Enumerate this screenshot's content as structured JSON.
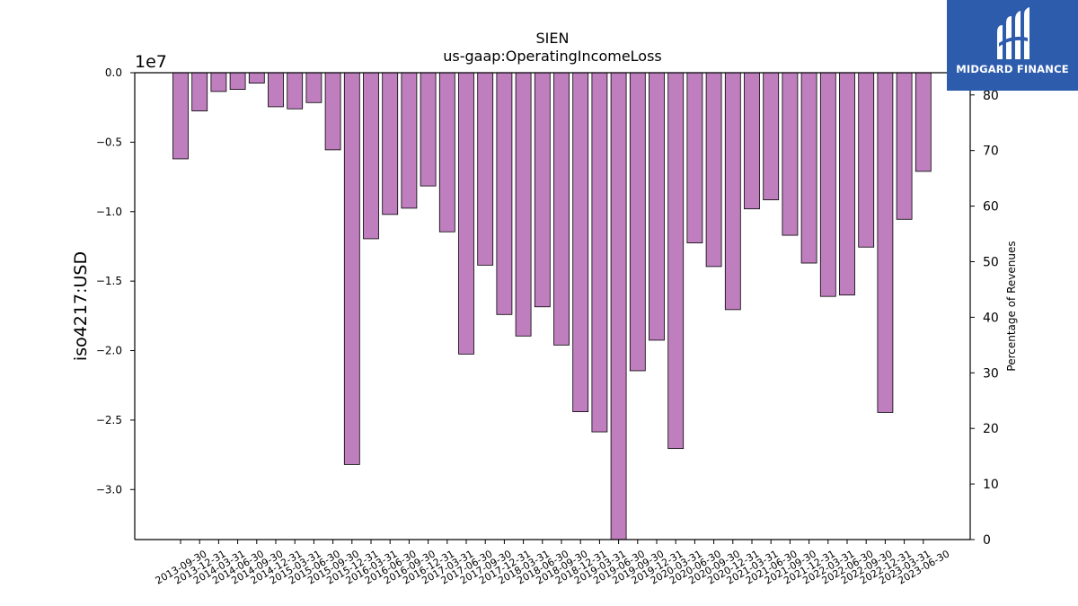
{
  "chart_data": {
    "type": "bar",
    "title": "SIEN",
    "subtitle": "us-gaap:OperatingIncomeLoss",
    "ylabel": "iso4217:USD",
    "y_offset_label": "1e7",
    "y2label": "Percentage of Revenues",
    "ylim": [
      -33600000,
      0
    ],
    "y2lim": [
      0,
      84
    ],
    "yticks": [
      "0.0",
      "−0.5",
      "−1.0",
      "−1.5",
      "−2.0",
      "−2.5",
      "−3.0"
    ],
    "ytick_values": [
      0,
      -5000000,
      -10000000,
      -15000000,
      -20000000,
      -25000000,
      -30000000
    ],
    "y2ticks": [
      "0",
      "10",
      "20",
      "30",
      "40",
      "50",
      "60",
      "70",
      "80"
    ],
    "y2tick_values": [
      0,
      10,
      20,
      30,
      40,
      50,
      60,
      70,
      80
    ],
    "bar_color": "#bf7fbf",
    "categories": [
      "2013-09-30",
      "2013-12-31",
      "2014-03-31",
      "2014-06-30",
      "2014-09-30",
      "2014-12-31",
      "2015-03-31",
      "2015-06-30",
      "2015-09-30",
      "2015-12-31",
      "2016-03-31",
      "2016-06-30",
      "2016-09-30",
      "2016-12-31",
      "2017-03-31",
      "2017-06-30",
      "2017-09-30",
      "2017-12-31",
      "2018-03-31",
      "2018-06-30",
      "2018-09-30",
      "2018-12-31",
      "2019-03-31",
      "2019-06-30",
      "2019-09-30",
      "2019-12-31",
      "2020-03-31",
      "2020-06-30",
      "2020-09-30",
      "2020-12-31",
      "2021-03-31",
      "2021-06-30",
      "2021-09-30",
      "2021-12-31",
      "2022-03-31",
      "2022-06-30",
      "2022-09-30",
      "2022-12-31",
      "2023-03-31",
      "2023-06-30"
    ],
    "values": [
      -6200000,
      -2750000,
      -1350000,
      -1200000,
      -750000,
      -2450000,
      -2600000,
      -2150000,
      -5550000,
      -28200000,
      -11950000,
      -10200000,
      -9750000,
      -8150000,
      -11450000,
      -20250000,
      -13850000,
      -17400000,
      -18950000,
      -16850000,
      -19600000,
      -24400000,
      -25850000,
      -33600000,
      -21450000,
      -19250000,
      -27050000,
      -12250000,
      -13950000,
      -17050000,
      -9800000,
      -9150000,
      -11700000,
      -13700000,
      -16100000,
      -16000000,
      -12550000,
      -24450000,
      -10550000,
      -7100000
    ]
  },
  "logo": {
    "text": "MIDGARD FINANCE"
  }
}
